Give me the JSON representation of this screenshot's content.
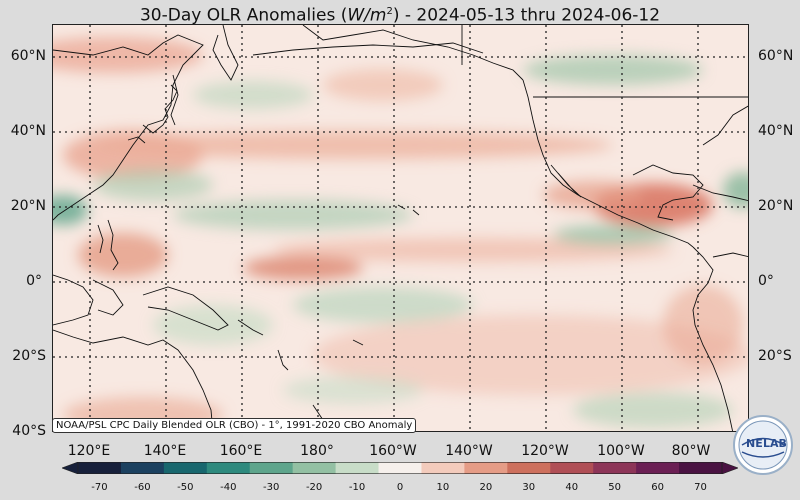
{
  "title": {
    "prefix": "30-Day OLR Anomalies (",
    "unit": "W/m",
    "unit_sup": "2",
    "suffix": ") - 2024-05-13 thru 2024-06-12"
  },
  "map": {
    "lat_labels": [
      "60°N",
      "40°N",
      "20°N",
      "0°",
      "20°S",
      "40°S"
    ],
    "lon_labels": [
      "120°E",
      "140°E",
      "160°E",
      "180°",
      "160°W",
      "140°W",
      "120°W",
      "100°W",
      "80°W"
    ],
    "credit": "NOAA/PSL CPC Daily Blended OLR (CBO) - 1°, 1991-2020 CBO Anomaly"
  },
  "colorbar": {
    "ticks": [
      "-70",
      "-60",
      "-50",
      "-40",
      "-30",
      "-20",
      "-10",
      "0",
      "10",
      "20",
      "30",
      "40",
      "50",
      "60",
      "70"
    ],
    "colors": [
      "#17203b",
      "#1c4160",
      "#18676e",
      "#2e8a7e",
      "#5ea58c",
      "#93c0a3",
      "#c8ddc8",
      "#f6f0ec",
      "#f3cbbc",
      "#e59c86",
      "#cd705d",
      "#b04f56",
      "#8d3558",
      "#6b1f54",
      "#4a1242"
    ]
  },
  "logo": {
    "text_ne": "NE",
    "text_lab": "LAB"
  }
}
